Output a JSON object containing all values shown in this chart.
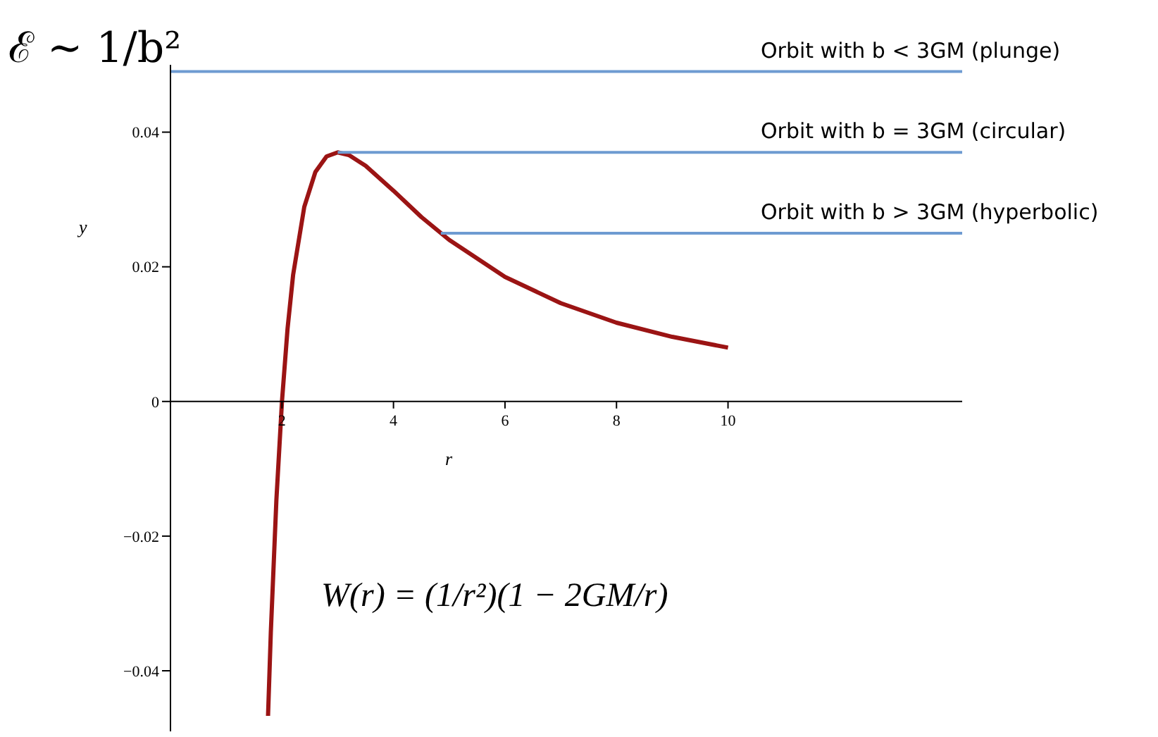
{
  "chart_data": {
    "type": "line",
    "xlabel": "r",
    "ylabel": "y",
    "xlim": [
      0,
      14.2
    ],
    "ylim": [
      -0.049,
      0.05
    ],
    "xticks": [
      2,
      4,
      6,
      8,
      10
    ],
    "yticks": [
      {
        "value": -0.04,
        "label": "−0.04"
      },
      {
        "value": -0.02,
        "label": "−0.02"
      },
      0,
      0.02,
      0.04
    ],
    "series": [
      {
        "color": "#9b1414",
        "x": [
          1.75,
          1.8,
          1.9,
          2,
          2.1,
          2.2,
          2.4,
          2.6,
          2.8,
          3,
          3.2,
          3.5,
          4,
          4.5,
          5,
          6,
          7,
          8,
          9,
          10
        ],
        "values": [
          -0.0467,
          -0.0343,
          -0.0146,
          0,
          0.0108,
          0.0188,
          0.0289,
          0.0341,
          0.0364,
          0.037,
          0.0366,
          0.035,
          0.0313,
          0.0274,
          0.024,
          0.0185,
          0.0146,
          0.0117,
          0.0096,
          0.008
        ]
      },
      {
        "name": "Orbit with b < 3GM (plunge)",
        "color": "#6e9bd1",
        "x": [
          0,
          14.2
        ],
        "values": [
          0.049,
          0.049
        ]
      },
      {
        "name": "Orbit with b = 3GM (circular)",
        "color": "#6e9bd1",
        "x": [
          3,
          14.2
        ],
        "values": [
          0.037,
          0.037
        ]
      },
      {
        "name": "Orbit with b > 3GM (hyperbolic)",
        "color": "#6e9bd1",
        "x": [
          4.85,
          14.2
        ],
        "values": [
          0.025,
          0.025
        ]
      }
    ],
    "annotations": [
      "ℰ ∼ 1/b²",
      "W(r) = (1/r²)(1 − 2GM/r)"
    ]
  }
}
